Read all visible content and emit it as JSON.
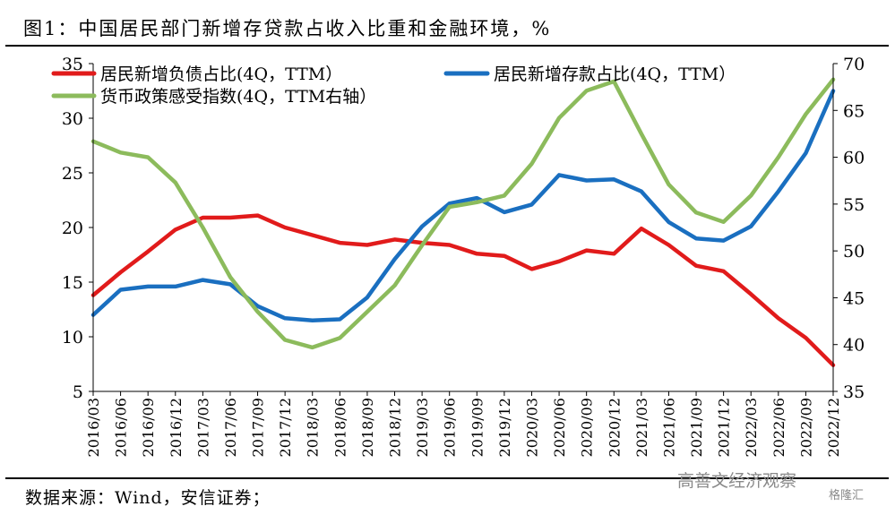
{
  "header": {
    "title": "图1：中国居民部门新增存贷款占收入比重和金融环境，%"
  },
  "footer": {
    "source": "数据来源：Wind，安信证券；"
  },
  "watermark": {
    "text": "高善文经济观察",
    "logo_text": "格隆汇"
  },
  "colors": {
    "red": "#e11b1b",
    "blue": "#1a6fc0",
    "green": "#8cbb5c",
    "axis": "#000000"
  },
  "chart_data": {
    "type": "line",
    "categories": [
      "2016/03",
      "2016/06",
      "2016/09",
      "2016/12",
      "2017/03",
      "2017/06",
      "2017/09",
      "2017/12",
      "2018/03",
      "2018/06",
      "2018/09",
      "2018/12",
      "2019/03",
      "2019/06",
      "2019/09",
      "2019/12",
      "2020/03",
      "2020/06",
      "2020/09",
      "2020/12",
      "2021/03",
      "2021/06",
      "2021/09",
      "2021/12",
      "2022/03",
      "2022/06",
      "2022/09",
      "2022/12"
    ],
    "left_axis": {
      "min": 5,
      "max": 35,
      "ticks": [
        "5",
        "10",
        "15",
        "20",
        "25",
        "30",
        "35"
      ]
    },
    "right_axis": {
      "min": 35,
      "max": 70,
      "ticks": [
        "35",
        "40",
        "45",
        "50",
        "55",
        "60",
        "65",
        "70"
      ]
    },
    "series": [
      {
        "name": "居民新增负债占比(4Q，TTM）",
        "axis": "left",
        "color": "#e11b1b",
        "values": [
          13.8,
          15.9,
          17.8,
          19.8,
          20.9,
          20.9,
          21.1,
          20.0,
          19.3,
          18.6,
          18.4,
          18.9,
          18.6,
          18.4,
          17.6,
          17.4,
          16.2,
          16.9,
          17.9,
          17.6,
          19.9,
          18.4,
          16.5,
          16.0,
          13.9,
          11.7,
          9.9,
          7.4
        ]
      },
      {
        "name": "居民新增存款占比(4Q，TTM）",
        "axis": "left",
        "color": "#1a6fc0",
        "values": [
          12.0,
          14.3,
          14.6,
          14.6,
          15.2,
          14.8,
          12.8,
          11.7,
          11.5,
          11.6,
          13.6,
          17.1,
          20.1,
          22.2,
          22.7,
          21.4,
          22.1,
          24.8,
          24.3,
          24.4,
          23.3,
          20.5,
          19.0,
          18.8,
          20.1,
          23.3,
          26.8,
          32.5
        ]
      },
      {
        "name": "货币政策感受指数(4Q，TTM右轴）",
        "axis": "right",
        "color": "#8cbb5c",
        "values": [
          61.7,
          60.5,
          60.0,
          57.3,
          52.5,
          47.2,
          43.5,
          40.5,
          39.7,
          40.7,
          43.5,
          46.3,
          50.6,
          54.7,
          55.2,
          55.9,
          59.3,
          64.2,
          67.1,
          68.1,
          62.5,
          57.1,
          54.1,
          53.1,
          55.9,
          60.0,
          64.6,
          68.3
        ]
      }
    ]
  }
}
